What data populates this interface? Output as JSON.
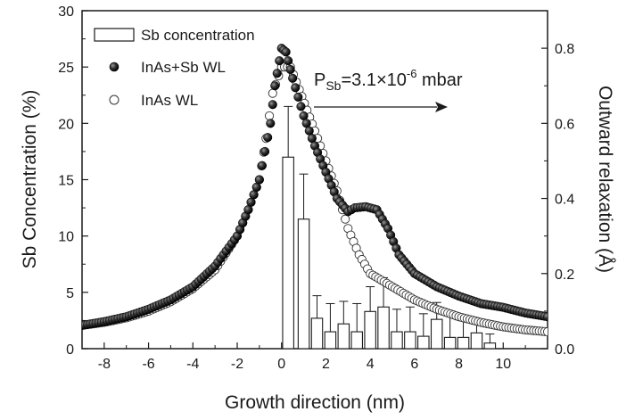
{
  "chart_data": {
    "type": "scatter",
    "xlabel": "Growth direction (nm)",
    "ylabel": "Sb Concentration (%)",
    "y2label": "Outward relaxation (Å)",
    "xlim": [
      -9,
      12
    ],
    "ylim": [
      0,
      30
    ],
    "y2lim": [
      0,
      0.9
    ],
    "x_ticks": [
      -8,
      -6,
      -4,
      -2,
      0,
      2,
      4,
      6,
      8,
      10
    ],
    "y_ticks": [
      0,
      5,
      10,
      15,
      20,
      25,
      30
    ],
    "y2_ticks": [
      0.0,
      0.2,
      0.4,
      0.6,
      0.8
    ],
    "annotation": {
      "p": "P",
      "sub": "Sb",
      "mid": "=3.1×10",
      "sup": "-6",
      "unit": " mbar"
    },
    "legend": [
      {
        "label": "Sb concentration",
        "marker": "open-bar"
      },
      {
        "label": "InAs+Sb WL",
        "marker": "filled-circle"
      },
      {
        "label": "InAs WL",
        "marker": "open-circle"
      }
    ],
    "bars": {
      "name": "Sb concentration",
      "axis": "left",
      "x": [
        0.3,
        1.0,
        1.6,
        2.2,
        2.8,
        3.4,
        4.0,
        4.6,
        5.2,
        5.8,
        6.4,
        7.0,
        7.6,
        8.2,
        8.8,
        9.4
      ],
      "values": [
        17,
        11.5,
        2.7,
        1.5,
        2.2,
        1.5,
        3.3,
        3.7,
        1.5,
        1.5,
        1.1,
        2.6,
        1.0,
        1.0,
        1.4,
        0.5
      ],
      "errors": [
        4.5,
        4.0,
        2.0,
        2.5,
        2.0,
        2.5,
        2.2,
        2.6,
        2.0,
        2.2,
        2.0,
        1.5,
        2.0,
        1.8,
        1.2,
        0.8
      ]
    },
    "series": [
      {
        "name": "InAs+Sb WL",
        "axis": "right",
        "marker": "filled-circle",
        "points": [
          [
            -9,
            0.062
          ],
          [
            -8,
            0.072
          ],
          [
            -7,
            0.085
          ],
          [
            -6,
            0.105
          ],
          [
            -5,
            0.13
          ],
          [
            -4,
            0.165
          ],
          [
            -3,
            0.22
          ],
          [
            -2,
            0.3
          ],
          [
            -1.5,
            0.37
          ],
          [
            -1,
            0.45
          ],
          [
            -0.5,
            0.6
          ],
          [
            -0.3,
            0.7
          ],
          [
            0,
            0.8
          ],
          [
            0.2,
            0.79
          ],
          [
            0.5,
            0.72
          ],
          [
            1,
            0.62
          ],
          [
            1.5,
            0.54
          ],
          [
            2,
            0.47
          ],
          [
            2.5,
            0.4
          ],
          [
            3,
            0.365
          ],
          [
            3.3,
            0.375
          ],
          [
            3.8,
            0.378
          ],
          [
            4.3,
            0.37
          ],
          [
            4.8,
            0.32
          ],
          [
            5.3,
            0.25
          ],
          [
            6,
            0.2
          ],
          [
            7,
            0.165
          ],
          [
            8,
            0.14
          ],
          [
            9,
            0.12
          ],
          [
            10,
            0.11
          ],
          [
            11,
            0.095
          ],
          [
            12,
            0.085
          ]
        ]
      },
      {
        "name": "InAs WL",
        "axis": "right",
        "marker": "open-circle",
        "points": [
          [
            -9,
            0.062
          ],
          [
            -8,
            0.07
          ],
          [
            -7,
            0.082
          ],
          [
            -6,
            0.1
          ],
          [
            -5,
            0.125
          ],
          [
            -4,
            0.16
          ],
          [
            -3,
            0.21
          ],
          [
            -2,
            0.3
          ],
          [
            -1.5,
            0.37
          ],
          [
            -1,
            0.45
          ],
          [
            -0.7,
            0.56
          ],
          [
            -0.4,
            0.68
          ],
          [
            0,
            0.75
          ],
          [
            0.4,
            0.75
          ],
          [
            0.8,
            0.69
          ],
          [
            1.5,
            0.58
          ],
          [
            2,
            0.5
          ],
          [
            2.5,
            0.42
          ],
          [
            3,
            0.32
          ],
          [
            3.5,
            0.25
          ],
          [
            4,
            0.2
          ],
          [
            5,
            0.165
          ],
          [
            6,
            0.13
          ],
          [
            7,
            0.105
          ],
          [
            8,
            0.085
          ],
          [
            9,
            0.07
          ],
          [
            10,
            0.058
          ],
          [
            11,
            0.05
          ],
          [
            12,
            0.045
          ]
        ]
      }
    ]
  }
}
